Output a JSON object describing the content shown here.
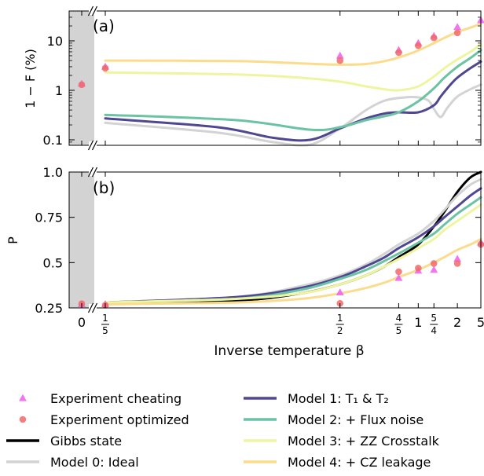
{
  "chart_data": [
    {
      "type": "scatter",
      "panel_label": "(a)",
      "ylabel": "1 − F (%)",
      "yscale": "log",
      "ylim": [
        0.08,
        30
      ],
      "yticks": [
        0.1,
        1,
        10
      ],
      "yticklabels": [
        "0.1",
        "1",
        "10"
      ],
      "series": [
        {
          "name": "Experiment cheating",
          "marker": "triangle",
          "color": "#ee5cf0",
          "x": [
            0,
            0.2,
            0.5,
            0.8,
            1.0,
            1.25,
            2.0,
            5.0
          ],
          "y": [
            1.35,
            3.0,
            5.0,
            6.5,
            9.0,
            12.5,
            19.0,
            26.0
          ]
        },
        {
          "name": "Experiment optimized",
          "marker": "circle",
          "color": "#f06a6a",
          "x": [
            0,
            0.2,
            0.5,
            0.8,
            1.0,
            1.25,
            2.0
          ],
          "y": [
            1.3,
            2.8,
            4.0,
            5.8,
            8.0,
            11.5,
            14.5
          ]
        },
        {
          "name": "Model 0: Ideal",
          "color": "#d3d3d3",
          "x": [
            0.2,
            0.28,
            0.35,
            0.42,
            0.5,
            0.6,
            0.7,
            0.85,
            1.0,
            1.15,
            1.25,
            1.4,
            1.6,
            2.0,
            3.0,
            5.0
          ],
          "y": [
            0.22,
            0.14,
            0.09,
            0.08,
            0.17,
            0.4,
            0.62,
            0.72,
            0.72,
            0.62,
            0.42,
            0.29,
            0.45,
            0.75,
            1.05,
            1.3
          ]
        },
        {
          "name": "Model 1: T₁  &  T₂",
          "color": "#4f4791",
          "x": [
            0.2,
            0.28,
            0.35,
            0.42,
            0.5,
            0.6,
            0.7,
            0.8,
            1.0,
            1.25,
            1.4,
            1.7,
            2.0,
            3.0,
            5.0
          ],
          "y": [
            0.27,
            0.18,
            0.11,
            0.1,
            0.17,
            0.27,
            0.34,
            0.36,
            0.36,
            0.5,
            0.75,
            1.3,
            1.8,
            2.8,
            3.8
          ]
        },
        {
          "name": "Model 2: + Flux noise",
          "color": "#6cc3a4",
          "x": [
            0.2,
            0.3,
            0.42,
            0.5,
            0.6,
            0.7,
            0.8,
            1.0,
            1.25,
            1.5,
            2.0,
            3.0,
            5.0
          ],
          "y": [
            0.32,
            0.25,
            0.16,
            0.18,
            0.25,
            0.3,
            0.36,
            0.6,
            1.1,
            1.8,
            3.0,
            4.5,
            6.5
          ]
        },
        {
          "name": "Model 3: + ZZ Crosstalk",
          "color": "#eef5a0",
          "x": [
            0.2,
            0.3,
            0.4,
            0.5,
            0.6,
            0.7,
            0.8,
            1.0,
            1.25,
            1.5,
            2.0,
            3.0,
            5.0
          ],
          "y": [
            2.3,
            2.1,
            1.8,
            1.5,
            1.2,
            1.05,
            1.0,
            1.2,
            1.9,
            2.8,
            4.2,
            6.0,
            8.5
          ]
        },
        {
          "name": "Model 4: + CZ leakage",
          "color": "#fbdc8c",
          "x": [
            0.2,
            0.3,
            0.4,
            0.5,
            0.6,
            0.7,
            0.8,
            1.0,
            1.25,
            1.5,
            2.0,
            3.0,
            5.0
          ],
          "y": [
            4.0,
            3.9,
            3.5,
            3.3,
            3.4,
            3.9,
            4.6,
            6.4,
            9.0,
            11.5,
            15.0,
            18.5,
            22.0
          ]
        }
      ]
    },
    {
      "type": "line",
      "panel_label": "(b)",
      "xlabel": "Inverse temperature β",
      "ylabel": "P",
      "ylim": [
        0.25,
        1.0
      ],
      "yticks": [
        0.25,
        0.5,
        0.75,
        1.0
      ],
      "yticklabels": [
        "0.25",
        "0.5",
        "0.75",
        "1.0"
      ],
      "xscale": "reciprocal",
      "xticks": [
        0,
        0.2,
        0.5,
        0.8,
        1.0,
        1.25,
        2.0,
        5.0
      ],
      "xticklabels": [
        "0",
        "1/5",
        "1/2",
        "4/5",
        "1",
        "5/4",
        "2",
        "5"
      ],
      "series": [
        {
          "name": "Experiment cheating",
          "marker": "triangle",
          "color": "#ee5cf0",
          "x": [
            0,
            0.2,
            0.5,
            0.8,
            1.0,
            1.25,
            2.0,
            5.0
          ],
          "y": [
            0.27,
            0.27,
            0.335,
            0.415,
            0.455,
            0.46,
            0.52,
            0.61
          ]
        },
        {
          "name": "Experiment optimized",
          "marker": "circle",
          "color": "#f06a6a",
          "x": [
            0,
            0.2,
            0.5,
            0.8,
            1.0,
            1.25,
            2.0,
            5.0
          ],
          "y": [
            0.273,
            0.265,
            0.275,
            0.45,
            0.47,
            0.495,
            0.495,
            0.6
          ]
        },
        {
          "name": "Gibbs state",
          "color": "#000000",
          "x": [
            0.2,
            0.3,
            0.4,
            0.5,
            0.6,
            0.7,
            0.8,
            1.0,
            1.25,
            1.5,
            2.0,
            3.0,
            5.0
          ],
          "y": [
            0.275,
            0.29,
            0.33,
            0.38,
            0.43,
            0.48,
            0.53,
            0.6,
            0.7,
            0.78,
            0.89,
            0.97,
            1.0
          ]
        },
        {
          "name": "Model 0: Ideal",
          "color": "#d3d3d3",
          "x": [
            0.2,
            0.3,
            0.4,
            0.5,
            0.6,
            0.7,
            0.8,
            1.0,
            1.25,
            1.5,
            2.0,
            3.0,
            5.0
          ],
          "y": [
            0.28,
            0.31,
            0.37,
            0.43,
            0.49,
            0.55,
            0.6,
            0.66,
            0.73,
            0.79,
            0.87,
            0.93,
            0.96
          ]
        },
        {
          "name": "Model 1: T₁  &  T₂",
          "color": "#4f4791",
          "x": [
            0.2,
            0.3,
            0.4,
            0.5,
            0.6,
            0.7,
            0.8,
            1.0,
            1.25,
            1.5,
            2.0,
            3.0,
            5.0
          ],
          "y": [
            0.28,
            0.31,
            0.36,
            0.42,
            0.48,
            0.53,
            0.58,
            0.64,
            0.7,
            0.75,
            0.81,
            0.87,
            0.91
          ]
        },
        {
          "name": "Model 2: + Flux noise",
          "color": "#6cc3a4",
          "x": [
            0.2,
            0.3,
            0.4,
            0.5,
            0.6,
            0.7,
            0.8,
            1.0,
            1.25,
            1.5,
            2.0,
            3.0,
            5.0
          ],
          "y": [
            0.28,
            0.3,
            0.35,
            0.41,
            0.46,
            0.51,
            0.55,
            0.61,
            0.66,
            0.71,
            0.77,
            0.82,
            0.86
          ]
        },
        {
          "name": "Model 3: + ZZ Crosstalk",
          "color": "#eef5a0",
          "x": [
            0.2,
            0.3,
            0.4,
            0.5,
            0.6,
            0.7,
            0.8,
            1.0,
            1.25,
            1.5,
            2.0,
            3.0,
            5.0
          ],
          "y": [
            0.28,
            0.3,
            0.33,
            0.38,
            0.43,
            0.48,
            0.52,
            0.58,
            0.63,
            0.68,
            0.73,
            0.78,
            0.82
          ]
        },
        {
          "name": "Model 4: + CZ leakage",
          "color": "#fbdc8c",
          "x": [
            0.2,
            0.3,
            0.4,
            0.5,
            0.6,
            0.7,
            0.8,
            1.0,
            1.25,
            1.5,
            2.0,
            3.0,
            5.0
          ],
          "y": [
            0.27,
            0.28,
            0.3,
            0.33,
            0.36,
            0.39,
            0.42,
            0.46,
            0.5,
            0.53,
            0.57,
            0.6,
            0.63
          ]
        }
      ]
    }
  ],
  "legend": {
    "left": [
      {
        "label": "Experiment cheating",
        "kind": "triangle",
        "color": "#ee5cf0"
      },
      {
        "label": "Experiment optimized",
        "kind": "circle",
        "color": "#f06a6a"
      },
      {
        "label": "Gibbs state",
        "kind": "line",
        "color": "#000000"
      },
      {
        "label": "Model 0: Ideal",
        "kind": "line",
        "color": "#d3d3d3"
      }
    ],
    "right": [
      {
        "label": "Model 1: T₁  &  T₂",
        "kind": "line",
        "color": "#4f4791"
      },
      {
        "label": "Model 2: + Flux noise",
        "kind": "line",
        "color": "#6cc3a4"
      },
      {
        "label": "Model 3: + ZZ Crosstalk",
        "kind": "line",
        "color": "#eef5a0"
      },
      {
        "label": "Model 4: + CZ leakage",
        "kind": "line",
        "color": "#fbdc8c"
      }
    ]
  }
}
